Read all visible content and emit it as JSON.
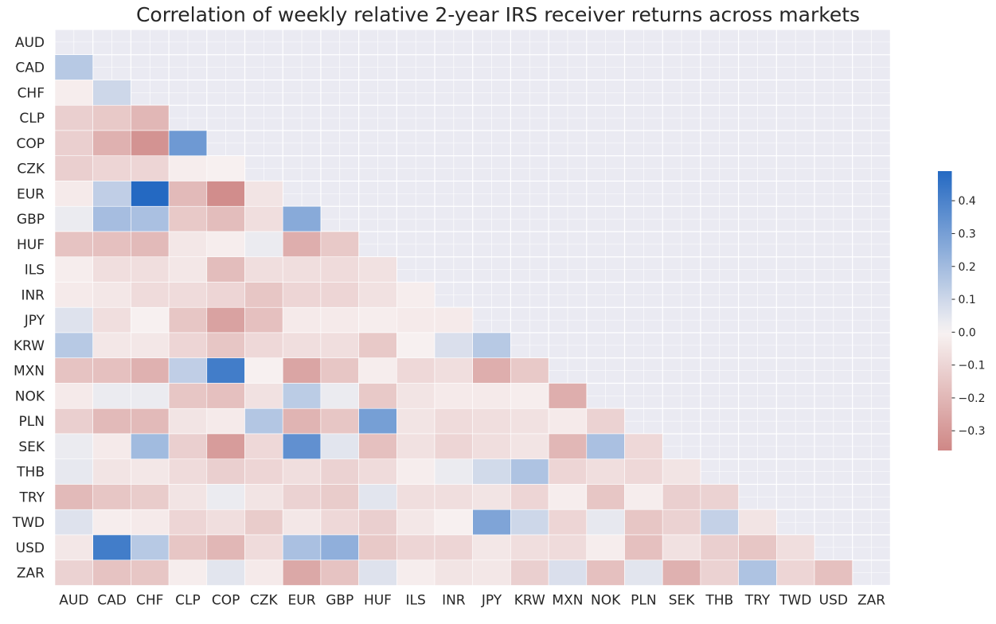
{
  "chart_data": {
    "type": "heatmap",
    "title": "Correlation of weekly relative 2-year IRS receiver returns across markets",
    "xlabel": "",
    "ylabel": "",
    "mask": "upper-triangle-and-diagonal",
    "labels": [
      "AUD",
      "CAD",
      "CHF",
      "CLP",
      "COP",
      "CZK",
      "EUR",
      "GBP",
      "HUF",
      "ILS",
      "INR",
      "JPY",
      "KRW",
      "MXN",
      "NOK",
      "PLN",
      "SEK",
      "THB",
      "TRY",
      "TWD",
      "USD",
      "ZAR"
    ],
    "rows": [
      [],
      [
        0.15
      ],
      [
        -0.02,
        0.1
      ],
      [
        -0.12,
        -0.14,
        -0.2
      ],
      [
        -0.12,
        -0.22,
        -0.32,
        0.32
      ],
      [
        -0.12,
        -0.1,
        -0.1,
        -0.02,
        -0.01
      ],
      [
        -0.03,
        0.13,
        0.49,
        -0.19,
        -0.34,
        -0.05
      ],
      [
        0.03,
        0.19,
        0.18,
        -0.14,
        -0.18,
        -0.07,
        0.26
      ],
      [
        -0.16,
        -0.17,
        -0.19,
        -0.04,
        -0.02,
        0.03,
        -0.23,
        -0.14
      ],
      [
        -0.02,
        -0.07,
        -0.07,
        -0.04,
        -0.18,
        -0.07,
        -0.07,
        -0.08,
        -0.06
      ],
      [
        -0.03,
        -0.04,
        -0.08,
        -0.08,
        -0.1,
        -0.15,
        -0.1,
        -0.1,
        -0.06,
        -0.02
      ],
      [
        0.06,
        -0.07,
        -0.01,
        -0.15,
        -0.27,
        -0.17,
        -0.03,
        -0.03,
        -0.02,
        -0.03,
        -0.03
      ],
      [
        0.15,
        -0.04,
        -0.04,
        -0.1,
        -0.15,
        -0.09,
        -0.07,
        -0.07,
        -0.14,
        -0.01,
        0.07,
        0.15
      ],
      [
        -0.16,
        -0.17,
        -0.22,
        0.13,
        0.42,
        -0.01,
        -0.26,
        -0.15,
        -0.02,
        -0.09,
        -0.07,
        -0.23,
        -0.14
      ],
      [
        -0.03,
        0.03,
        0.03,
        -0.15,
        -0.17,
        -0.06,
        0.14,
        0.03,
        -0.14,
        -0.05,
        -0.03,
        -0.03,
        -0.02,
        -0.23
      ],
      [
        -0.12,
        -0.19,
        -0.19,
        -0.05,
        -0.03,
        0.16,
        -0.21,
        -0.15,
        0.3,
        -0.05,
        -0.08,
        -0.07,
        -0.06,
        -0.03,
        -0.11
      ],
      [
        0.03,
        -0.03,
        0.2,
        -0.12,
        -0.29,
        -0.09,
        0.35,
        0.05,
        -0.17,
        -0.06,
        -0.1,
        -0.07,
        -0.05,
        -0.2,
        0.18,
        -0.09
      ],
      [
        0.04,
        -0.05,
        -0.04,
        -0.08,
        -0.12,
        -0.1,
        -0.07,
        -0.11,
        -0.08,
        -0.02,
        0.03,
        0.09,
        0.17,
        -0.1,
        -0.07,
        -0.09,
        -0.05
      ],
      [
        -0.19,
        -0.15,
        -0.13,
        -0.05,
        0.03,
        -0.05,
        -0.11,
        -0.13,
        0.05,
        -0.07,
        -0.07,
        -0.05,
        -0.1,
        -0.02,
        -0.15,
        -0.02,
        -0.12,
        -0.11
      ],
      [
        0.06,
        -0.02,
        -0.03,
        -0.1,
        -0.07,
        -0.13,
        -0.04,
        -0.09,
        -0.12,
        -0.04,
        -0.01,
        0.28,
        0.1,
        -0.1,
        0.04,
        -0.15,
        -0.11,
        0.12,
        -0.05
      ],
      [
        -0.04,
        0.42,
        0.15,
        -0.15,
        -0.2,
        -0.08,
        0.18,
        0.24,
        -0.14,
        -0.1,
        -0.1,
        -0.04,
        -0.07,
        -0.08,
        -0.02,
        -0.17,
        -0.06,
        -0.12,
        -0.15,
        -0.07
      ],
      [
        -0.11,
        -0.16,
        -0.15,
        -0.02,
        0.05,
        -0.03,
        -0.25,
        -0.16,
        0.06,
        -0.02,
        -0.05,
        -0.04,
        -0.12,
        0.07,
        -0.17,
        0.05,
        -0.22,
        -0.11,
        0.17,
        -0.1,
        -0.17
      ]
    ],
    "colorbar": {
      "vmin": -0.36,
      "vmax": 0.49,
      "ticks": [
        -0.3,
        -0.2,
        -0.1,
        0.0,
        0.1,
        0.2,
        0.3,
        0.4
      ],
      "tick_labels": [
        "−0.3",
        "−0.2",
        "−0.1",
        "0.0",
        "0.1",
        "0.2",
        "0.3",
        "0.4"
      ],
      "colormap": "diverging red-white-blue (vlag)",
      "low_color": "#c0605e",
      "mid_color": "#f8f3f3",
      "high_color": "#2469c2"
    },
    "background_color": "#eaeaf2",
    "grid": true
  }
}
